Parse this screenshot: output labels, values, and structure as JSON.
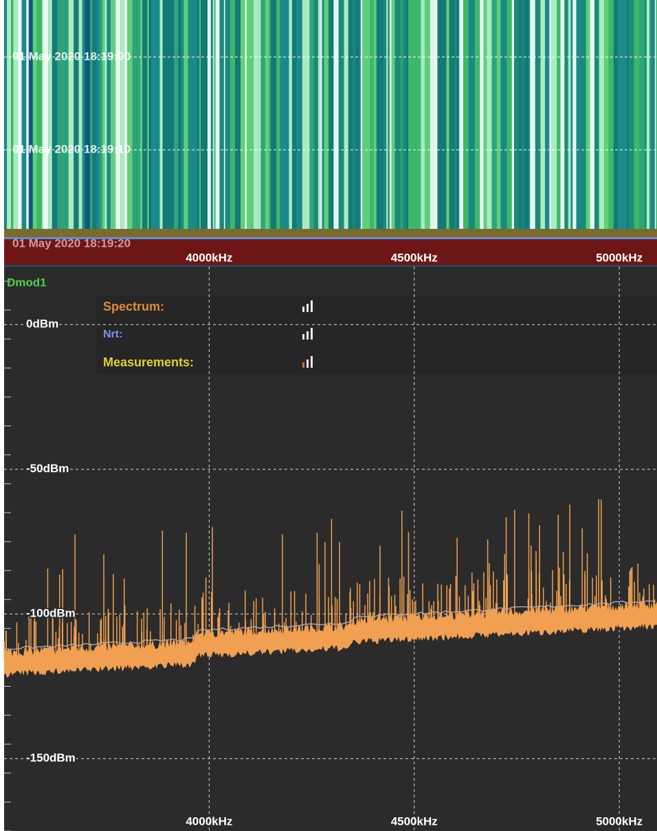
{
  "waterfall": {
    "time_labels": [
      "01 May 2020 18:19:00",
      "01 May 2020 18:19:10",
      "01 May 2020 18:19:20"
    ],
    "xticks": [
      {
        "value": 4000,
        "label": "4000kHz"
      },
      {
        "value": 4500,
        "label": "4500kHz"
      },
      {
        "value": 5000,
        "label": "5000kHz"
      }
    ]
  },
  "spectrum": {
    "title": "Dmod1",
    "legend": [
      "Spectrum:",
      "Nrt:",
      "Measurements:"
    ],
    "xlim": [
      3500,
      5092
    ],
    "xticks": [
      {
        "value": 4000,
        "label": "4000kHz"
      },
      {
        "value": 4500,
        "label": "4500kHz"
      },
      {
        "value": 5000,
        "label": "5000kHz"
      }
    ],
    "ylim": [
      -175,
      20
    ],
    "yticks": [
      {
        "value": 0,
        "label": "0dBm"
      },
      {
        "value": -50,
        "label": "-50dBm"
      },
      {
        "value": -100,
        "label": "-100dBm"
      },
      {
        "value": -150,
        "label": "-150dBm"
      }
    ]
  }
}
